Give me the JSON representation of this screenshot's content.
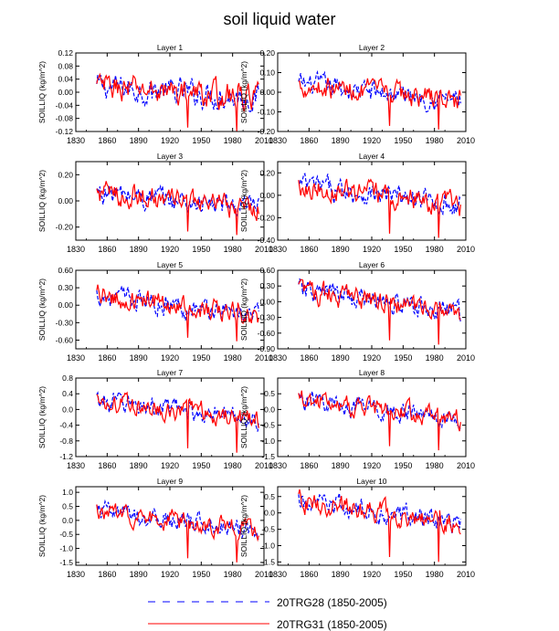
{
  "chart_data": {
    "type": "line",
    "title": "soil liquid water",
    "ylabel": "SOILLIQ  (kg/m^2)",
    "xlim": [
      1830,
      2010
    ],
    "xticks": [
      1830,
      1860,
      1890,
      1920,
      1950,
      1980,
      2010
    ],
    "legend_position": "bottom",
    "series_styles": [
      {
        "name": "20TRG28 (1850-2005)",
        "color": "#0000ff",
        "dash": "dashed"
      },
      {
        "name": "20TRG31 (1850-2005)",
        "color": "#ff0000",
        "dash": "solid"
      }
    ],
    "panels": [
      {
        "title": "Layer 1",
        "ylim": [
          -0.12,
          0.12
        ],
        "yticks": [
          "-0.12",
          "-0.08",
          "-0.04",
          "0.00",
          "0.04",
          "0.08",
          "0.12"
        ],
        "amp": 0.032,
        "trend": 0.022,
        "min_dip": -0.12,
        "series": [
          {
            "name": "20TRG28 (1850-2005)",
            "years": [
              1850,
              2005
            ]
          },
          {
            "name": "20TRG31 (1850-2005)",
            "years": [
              1850,
              2005
            ]
          }
        ]
      },
      {
        "title": "Layer 2",
        "ylim": [
          -0.2,
          0.2
        ],
        "yticks": [
          "-0.20",
          "-0.10",
          "0.00",
          "0.10",
          "0.20"
        ],
        "amp": 0.045,
        "trend": 0.05,
        "min_dip": -0.19,
        "series": [
          {
            "name": "20TRG28 (1850-2005)",
            "years": [
              1850,
              2005
            ]
          },
          {
            "name": "20TRG31 (1850-2005)",
            "years": [
              1850,
              2005
            ]
          }
        ]
      },
      {
        "title": "Layer 3",
        "ylim": [
          -0.3,
          0.3
        ],
        "yticks": [
          "-0.20",
          "0.00",
          "0.20"
        ],
        "amp": 0.07,
        "trend": 0.08,
        "min_dip": -0.26,
        "series": [
          {
            "name": "20TRG28 (1850-2005)",
            "years": [
              1850,
              2005
            ]
          },
          {
            "name": "20TRG31 (1850-2005)",
            "years": [
              1850,
              2005
            ]
          }
        ]
      },
      {
        "title": "Layer 4",
        "ylim": [
          -0.4,
          0.3
        ],
        "yticks": [
          "-0.40",
          "-0.20",
          "0.00",
          "0.20"
        ],
        "amp": 0.08,
        "trend": 0.12,
        "min_dip": -0.38,
        "series": [
          {
            "name": "20TRG28 (1850-2005)",
            "years": [
              1850,
              2005
            ]
          },
          {
            "name": "20TRG31 (1850-2005)",
            "years": [
              1850,
              2005
            ]
          }
        ]
      },
      {
        "title": "Layer 5",
        "ylim": [
          -0.75,
          0.6
        ],
        "yticks": [
          "-0.60",
          "-0.30",
          "0.00",
          "0.30",
          "0.60"
        ],
        "amp": 0.14,
        "trend": 0.22,
        "min_dip": -0.62,
        "series": [
          {
            "name": "20TRG28 (1850-2005)",
            "years": [
              1850,
              2005
            ]
          },
          {
            "name": "20TRG31 (1850-2005)",
            "years": [
              1850,
              2005
            ]
          }
        ]
      },
      {
        "title": "Layer 6",
        "ylim": [
          -0.9,
          0.6
        ],
        "yticks": [
          "-0.90",
          "-0.60",
          "-0.30",
          "0.00",
          "0.30",
          "0.60"
        ],
        "amp": 0.17,
        "trend": 0.28,
        "min_dip": -0.82,
        "series": [
          {
            "name": "20TRG28 (1850-2005)",
            "years": [
              1850,
              2005
            ]
          },
          {
            "name": "20TRG31 (1850-2005)",
            "years": [
              1850,
              2005
            ]
          }
        ]
      },
      {
        "title": "Layer 7",
        "ylim": [
          -1.2,
          0.8
        ],
        "yticks": [
          "-1.2",
          "-0.8",
          "-0.4",
          "0.0",
          "0.4",
          "0.8"
        ],
        "amp": 0.2,
        "trend": 0.3,
        "min_dip": -1.1,
        "series": [
          {
            "name": "20TRG28 (1850-2005)",
            "years": [
              1850,
              2005
            ]
          },
          {
            "name": "20TRG31 (1850-2005)",
            "years": [
              1850,
              2005
            ]
          }
        ]
      },
      {
        "title": "Layer 8",
        "ylim": [
          -1.5,
          1.0
        ],
        "yticks": [
          "-1.5",
          "-1.0",
          "-0.5",
          "0.0",
          "0.5"
        ],
        "amp": 0.25,
        "trend": 0.4,
        "min_dip": -1.3,
        "series": [
          {
            "name": "20TRG28 (1850-2005)",
            "years": [
              1850,
              2005
            ]
          },
          {
            "name": "20TRG31 (1850-2005)",
            "years": [
              1850,
              2005
            ]
          }
        ]
      },
      {
        "title": "Layer 9",
        "ylim": [
          -1.6,
          1.2
        ],
        "yticks": [
          "-1.5",
          "-1.0",
          "-0.5",
          "0.0",
          "0.5",
          "1.0"
        ],
        "amp": 0.28,
        "trend": 0.4,
        "min_dip": -1.5,
        "series": [
          {
            "name": "20TRG28 (1850-2005)",
            "years": [
              1850,
              2005
            ]
          },
          {
            "name": "20TRG31 (1850-2005)",
            "years": [
              1850,
              2005
            ]
          }
        ]
      },
      {
        "title": "Layer 10",
        "ylim": [
          -1.6,
          0.8
        ],
        "yticks": [
          "-1.5",
          "-1.0",
          "-0.5",
          "0.0",
          "0.5"
        ],
        "amp": 0.27,
        "trend": 0.4,
        "min_dip": -1.5,
        "series": [
          {
            "name": "20TRG28 (1850-2005)",
            "years": [
              1850,
              2005
            ]
          },
          {
            "name": "20TRG31 (1850-2005)",
            "years": [
              1850,
              2005
            ]
          }
        ]
      }
    ]
  }
}
